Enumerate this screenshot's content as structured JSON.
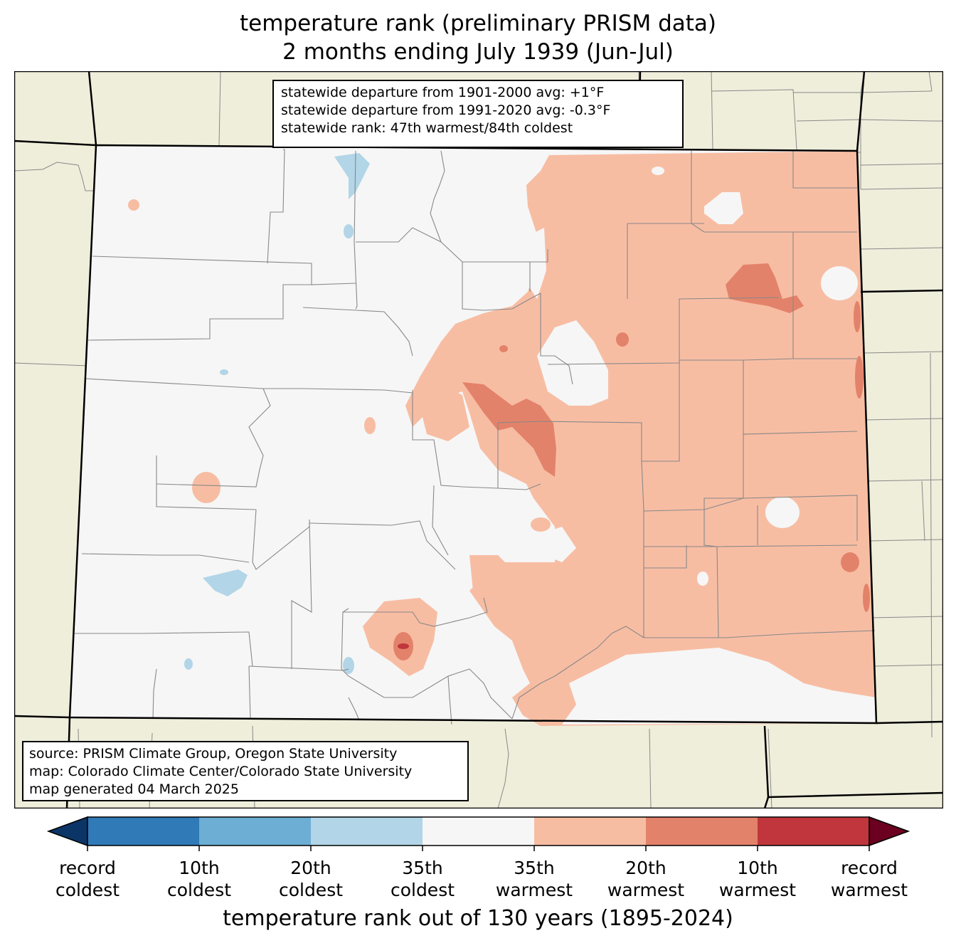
{
  "title": {
    "line1": "temperature rank (preliminary PRISM data)",
    "line2": "2 months ending July 1939 (Jun-Jul)"
  },
  "stats_box": {
    "line1": "statewide departure from 1901-2000 avg: +1°F",
    "line2": "statewide departure from 1991-2020 avg: -0.3°F",
    "line3": "statewide rank: 47th warmest/84th coldest"
  },
  "source_box": {
    "line1": "source: PRISM Climate Group, Oregon State University",
    "line2": "map: Colorado Climate Center/Colorado State University",
    "line3": "map generated 04 March 2025"
  },
  "colorbar": {
    "title": "temperature rank out of 130 years (1895-2024)",
    "colors": [
      "#2f7ab7",
      "#6daed4",
      "#b2d5e7",
      "#f6f6f6",
      "#f7bda3",
      "#e3826a",
      "#c0363c"
    ],
    "under_color": "#0c3567",
    "over_color": "#6b0020",
    "ticks": [
      {
        "line1": "record",
        "line2": "coldest"
      },
      {
        "line1": "10th",
        "line2": "coldest"
      },
      {
        "line1": "20th",
        "line2": "coldest"
      },
      {
        "line1": "35th",
        "line2": "coldest"
      },
      {
        "line1": "35th",
        "line2": "warmest"
      },
      {
        "line1": "20th",
        "line2": "warmest"
      },
      {
        "line1": "10th",
        "line2": "warmest"
      },
      {
        "line1": "record",
        "line2": "warmest"
      }
    ]
  },
  "map_colors": {
    "land": "#efeedb",
    "near_normal": "#f6f6f6",
    "warm_35": "#f7bda3",
    "warm_20": "#e3826a",
    "warm_10": "#c0363c",
    "cold_35": "#b2d5e7",
    "county_lines": "#888888",
    "state_lines": "#000000"
  }
}
